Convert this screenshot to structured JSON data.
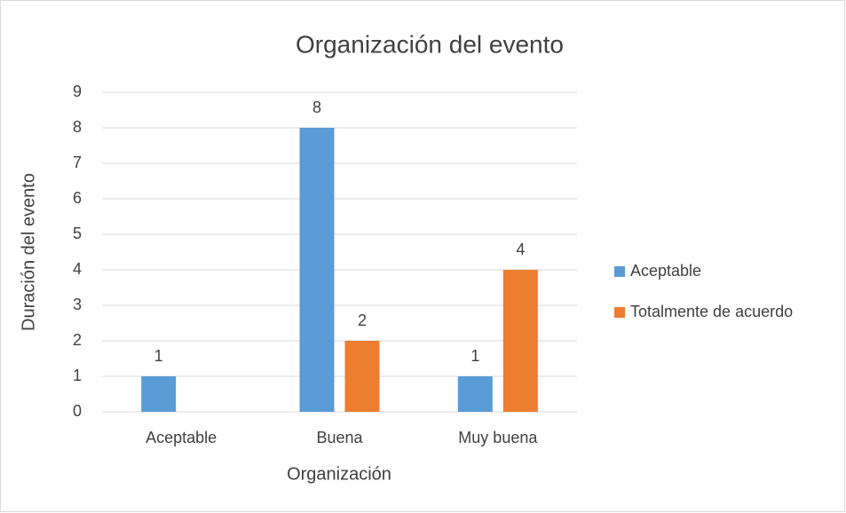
{
  "chart_data": {
    "type": "bar",
    "title": "Organización del evento",
    "x_label": "Organización",
    "y_label": "Duración del evento",
    "categories": [
      "Aceptable",
      "Buena",
      "Muy buena"
    ],
    "series": [
      {
        "name": "Aceptable",
        "color": "#5b9bd5",
        "values": [
          1,
          8,
          1
        ]
      },
      {
        "name": "Totalmente de acuerdo",
        "color": "#ed7d31",
        "values": [
          null,
          2,
          4
        ]
      }
    ],
    "ylim": [
      0,
      9
    ],
    "yticks": [
      0,
      1,
      2,
      3,
      4,
      5,
      6,
      7,
      8,
      9
    ],
    "grid": true,
    "legend": "right"
  }
}
